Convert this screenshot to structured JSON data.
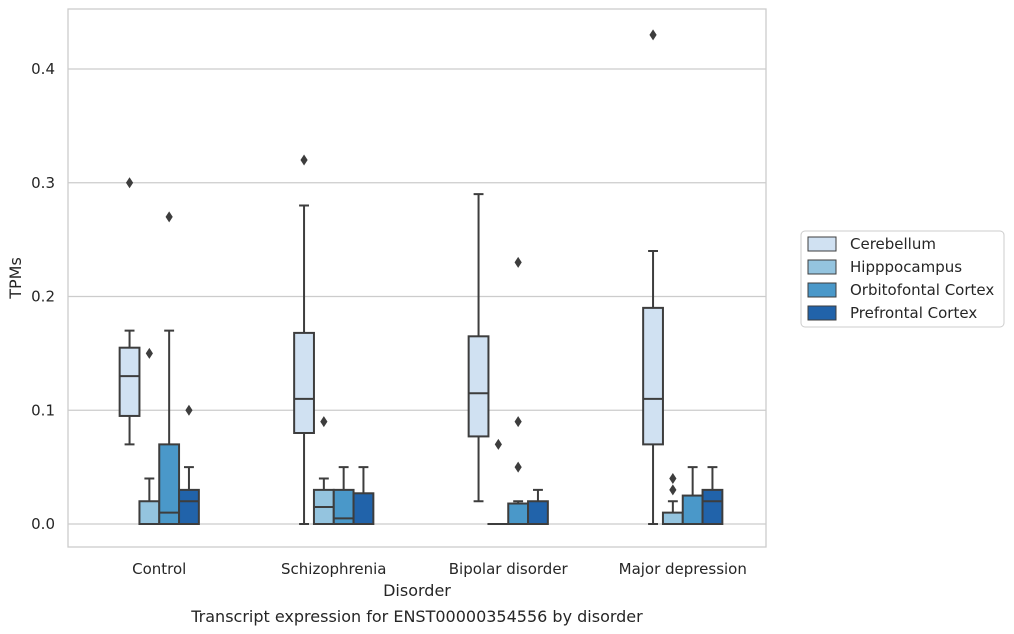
{
  "chart_data": {
    "type": "box",
    "title": "",
    "caption": "Transcript expression for ENST00000354556 by disorder",
    "xlabel": "Disorder",
    "ylabel": "TPMs",
    "ylim": [
      -0.02,
      0.455
    ],
    "yticks": [
      0.0,
      0.1,
      0.2,
      0.3,
      0.4
    ],
    "ytick_labels": [
      "0.0",
      "0.1",
      "0.2",
      "0.3",
      "0.4"
    ],
    "grid": "horizontal",
    "legend_position": "right",
    "categories": [
      "Control",
      "Schizophrenia",
      "Bipolar disorder",
      "Major depression"
    ],
    "series": [
      {
        "name": "Cerebellum",
        "color": "#d0e1f2",
        "boxes": [
          {
            "whislo": 0.07,
            "q1": 0.095,
            "med": 0.13,
            "q3": 0.155,
            "whishi": 0.17,
            "fliers": [
              0.3
            ]
          },
          {
            "whislo": 0.0,
            "q1": 0.08,
            "med": 0.11,
            "q3": 0.168,
            "whishi": 0.28,
            "fliers": [
              0.32
            ]
          },
          {
            "whislo": 0.02,
            "q1": 0.077,
            "med": 0.115,
            "q3": 0.165,
            "whishi": 0.29,
            "fliers": []
          },
          {
            "whislo": 0.0,
            "q1": 0.07,
            "med": 0.11,
            "q3": 0.19,
            "whishi": 0.24,
            "fliers": [
              0.43
            ]
          }
        ]
      },
      {
        "name": "Hipppocampus",
        "color": "#94c4df",
        "boxes": [
          {
            "whislo": 0.0,
            "q1": 0.0,
            "med": 0.0,
            "q3": 0.02,
            "whishi": 0.04,
            "fliers": [
              0.15
            ]
          },
          {
            "whislo": 0.0,
            "q1": 0.0,
            "med": 0.015,
            "q3": 0.03,
            "whishi": 0.04,
            "fliers": [
              0.09
            ]
          },
          {
            "whislo": 0.0,
            "q1": 0.0,
            "med": 0.0,
            "q3": 0.0,
            "whishi": 0.0,
            "fliers": [
              0.07
            ]
          },
          {
            "whislo": 0.0,
            "q1": 0.0,
            "med": 0.0,
            "q3": 0.01,
            "whishi": 0.02,
            "fliers": [
              0.03,
              0.04
            ]
          }
        ]
      },
      {
        "name": "Orbitofontal Cortex",
        "color": "#4a98c9",
        "boxes": [
          {
            "whislo": 0.0,
            "q1": 0.0,
            "med": 0.01,
            "q3": 0.07,
            "whishi": 0.17,
            "fliers": [
              0.27
            ]
          },
          {
            "whislo": 0.0,
            "q1": 0.0,
            "med": 0.005,
            "q3": 0.03,
            "whishi": 0.05,
            "fliers": []
          },
          {
            "whislo": 0.0,
            "q1": 0.0,
            "med": 0.0,
            "q3": 0.018,
            "whishi": 0.02,
            "fliers": [
              0.05,
              0.09,
              0.23
            ]
          },
          {
            "whislo": 0.0,
            "q1": 0.0,
            "med": 0.0,
            "q3": 0.025,
            "whishi": 0.05,
            "fliers": []
          }
        ]
      },
      {
        "name": "Prefrontal Cortex",
        "color": "#2163aa",
        "boxes": [
          {
            "whislo": 0.0,
            "q1": 0.0,
            "med": 0.02,
            "q3": 0.03,
            "whishi": 0.05,
            "fliers": [
              0.1
            ]
          },
          {
            "whislo": 0.0,
            "q1": 0.0,
            "med": 0.0,
            "q3": 0.027,
            "whishi": 0.05,
            "fliers": []
          },
          {
            "whislo": 0.0,
            "q1": 0.0,
            "med": 0.0,
            "q3": 0.02,
            "whishi": 0.03,
            "fliers": []
          },
          {
            "whislo": 0.0,
            "q1": 0.0,
            "med": 0.02,
            "q3": 0.03,
            "whishi": 0.05,
            "fliers": []
          }
        ]
      }
    ]
  }
}
